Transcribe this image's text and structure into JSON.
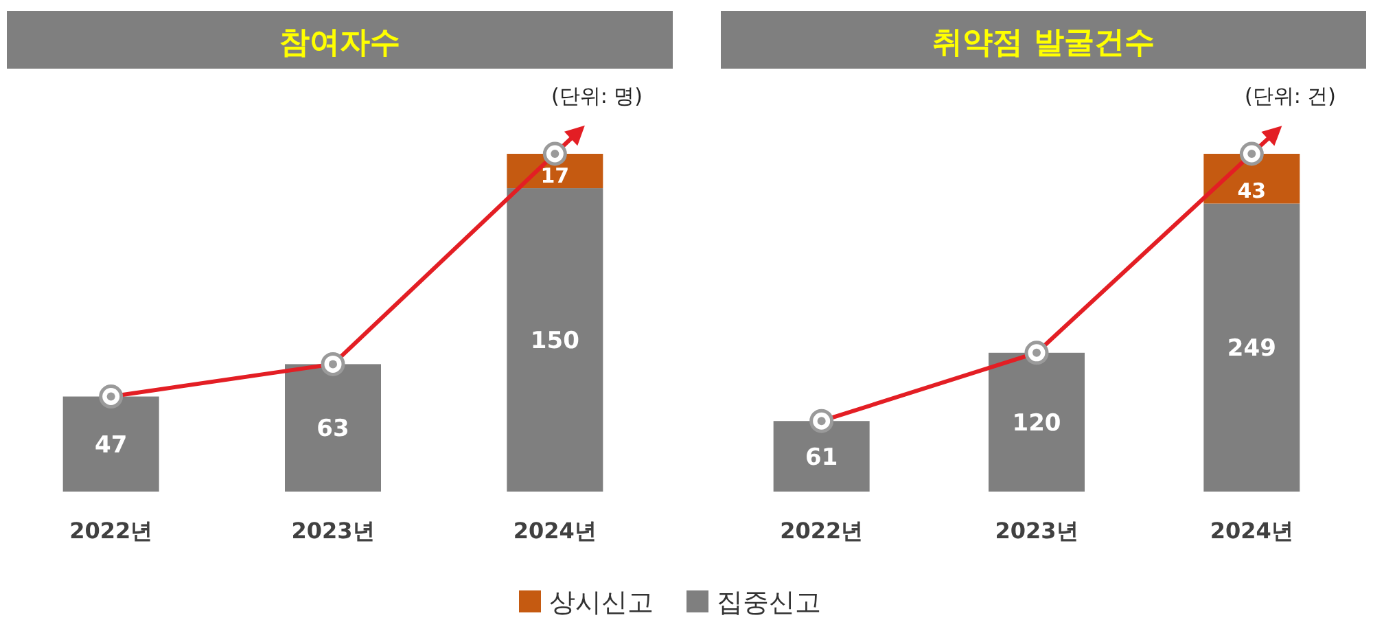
{
  "chart_data": [
    {
      "type": "bar",
      "title": "참여자수",
      "stacked": true,
      "data_labels": true,
      "legend": "bottom",
      "annotations": [
        "(단위: 명)"
      ],
      "categories": [
        "2022년",
        "2023년",
        "2024년"
      ],
      "series": [
        {
          "name": "집중신고",
          "color": "#7f7f7f",
          "values": [
            47,
            63,
            150
          ]
        },
        {
          "name": "상시신고",
          "color": "#c55a11",
          "values": [
            null,
            null,
            17
          ]
        },
        {
          "type": "line",
          "color": "#e31e24",
          "marker": "circle",
          "values": [
            47,
            63,
            167
          ],
          "value_labels": [
            null,
            null,
            null
          ]
        }
      ]
    },
    {
      "type": "bar",
      "title": "취약점 발굴건수",
      "stacked": true,
      "data_labels": true,
      "annotations": [
        "(단위: 건)"
      ],
      "categories": [
        "2022년",
        "2023년",
        "2024년"
      ],
      "series": [
        {
          "name": "집중신고",
          "color": "#7f7f7f",
          "values": [
            61,
            120,
            249
          ]
        },
        {
          "name": "상시신고",
          "color": "#c55a11",
          "values": [
            null,
            null,
            43
          ]
        },
        {
          "type": "line",
          "color": "#e31e24",
          "marker": "circle",
          "values": [
            61,
            120,
            292
          ],
          "value_labels": [
            null,
            null,
            null
          ]
        }
      ]
    }
  ]
}
